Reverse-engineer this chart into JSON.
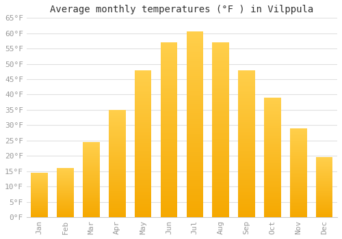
{
  "months": [
    "Jan",
    "Feb",
    "Mar",
    "Apr",
    "May",
    "Jun",
    "Jul",
    "Aug",
    "Sep",
    "Oct",
    "Nov",
    "Dec"
  ],
  "values": [
    14.5,
    16.0,
    24.5,
    35.0,
    48.0,
    57.0,
    60.5,
    57.0,
    48.0,
    39.0,
    29.0,
    19.5
  ],
  "bar_color_bottom": "#F5A800",
  "bar_color_top": "#FFCF4B",
  "title": "Average monthly temperatures (°F ) in Vilppula",
  "ylim": [
    0,
    65
  ],
  "yticks": [
    0,
    5,
    10,
    15,
    20,
    25,
    30,
    35,
    40,
    45,
    50,
    55,
    60,
    65
  ],
  "grid_color": "#e0e0e0",
  "background_color": "#ffffff",
  "title_fontsize": 10,
  "tick_fontsize": 8,
  "tick_color": "#999999",
  "bar_width": 0.65
}
